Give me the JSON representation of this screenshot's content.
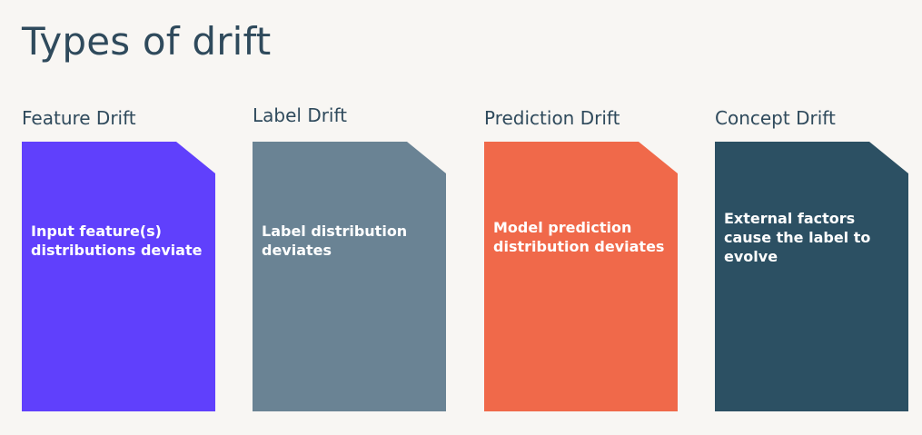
{
  "title": "Types of drift",
  "drift_types": [
    {
      "label": "Feature Drift",
      "description": "Input feature(s) distributions deviate",
      "color": "#6040fc"
    },
    {
      "label": "Label Drift",
      "description": "Label distribution deviates",
      "color": "#6a8394"
    },
    {
      "label": "Prediction Drift",
      "description": "Model prediction distribution deviates",
      "color": "#f0694a"
    },
    {
      "label": "Concept Drift",
      "description": "External factors cause the label to evolve",
      "color": "#2c5063"
    }
  ]
}
